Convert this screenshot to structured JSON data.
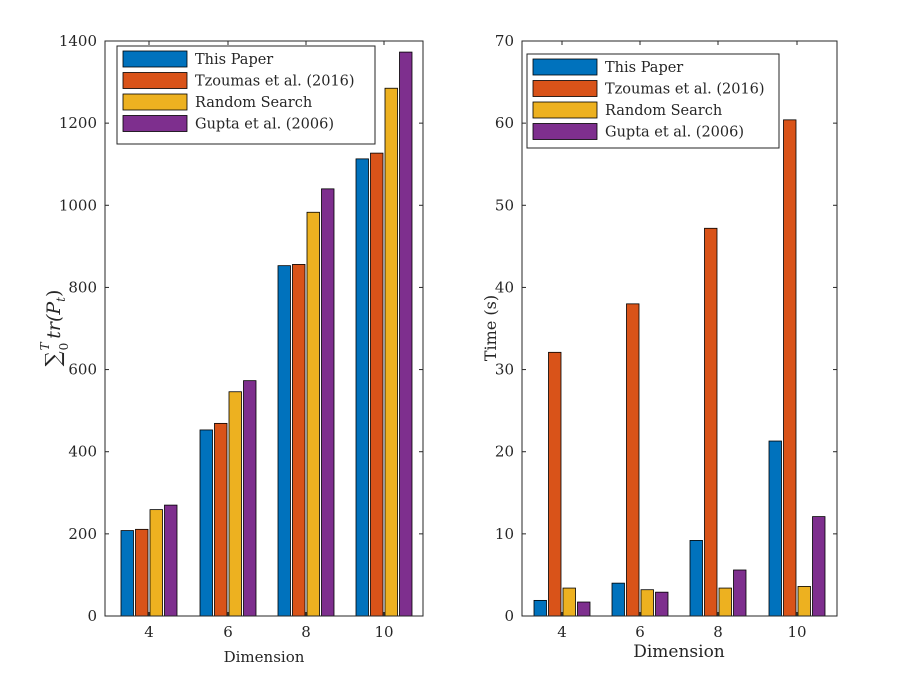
{
  "colors": {
    "this_paper": "#0072BD",
    "tzoumas": "#D95319",
    "random": "#EDB120",
    "gupta": "#7E2F8E"
  },
  "chart_data": [
    {
      "type": "bar",
      "categories": [
        "4",
        "6",
        "8",
        "10"
      ],
      "xlabel": "Dimension",
      "ylabel": "∑",
      "ylabel_sub": "0",
      "ylabel_sup": "T",
      "ylabel_rest": "tr(P",
      "ylabel_rest_sub": "t",
      "ylabel_close": ")",
      "ylim": [
        0,
        1400
      ],
      "yticks": [
        0,
        200,
        400,
        600,
        800,
        1000,
        1200,
        1400
      ],
      "legend_position": "top-left",
      "series": [
        {
          "name": "This Paper",
          "values": [
            208,
            453,
            853,
            1113
          ]
        },
        {
          "name": "Tzoumas et al. (2016)",
          "values": [
            211,
            469,
            856,
            1127
          ]
        },
        {
          "name": "Random Search",
          "values": [
            259,
            546,
            983,
            1285
          ]
        },
        {
          "name": "Gupta et al. (2006)",
          "values": [
            270,
            573,
            1040,
            1373
          ]
        }
      ]
    },
    {
      "type": "bar",
      "categories": [
        "4",
        "6",
        "8",
        "10"
      ],
      "xlabel": "Dimension",
      "ylabel": "Time (s)",
      "ylim": [
        0,
        70
      ],
      "yticks": [
        0,
        10,
        20,
        30,
        40,
        50,
        60,
        70
      ],
      "legend_position": "top-left",
      "series": [
        {
          "name": "This Paper",
          "values": [
            1.9,
            4.0,
            9.2,
            21.3
          ]
        },
        {
          "name": "Tzoumas et al. (2016)",
          "values": [
            32.1,
            38.0,
            47.2,
            60.4
          ]
        },
        {
          "name": "Random Search",
          "values": [
            3.4,
            3.2,
            3.4,
            3.6
          ]
        },
        {
          "name": "Gupta et al. (2006)",
          "values": [
            1.7,
            2.9,
            5.6,
            12.1
          ]
        }
      ]
    }
  ]
}
